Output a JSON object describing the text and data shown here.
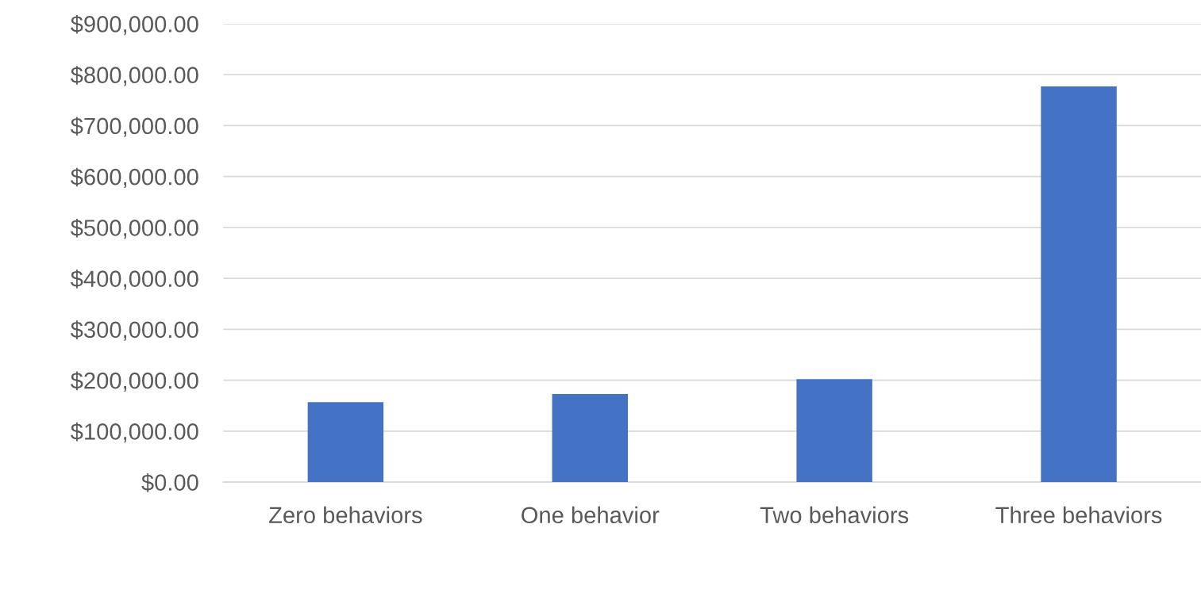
{
  "chart_data": {
    "type": "bar",
    "categories": [
      "Zero behaviors",
      "One behavior",
      "Two behaviors",
      "Three behaviors"
    ],
    "values": [
      157000,
      173000,
      202000,
      777000
    ],
    "color": "#4472c4",
    "ylim": [
      0,
      900000
    ],
    "yticks": [
      {
        "value": 0,
        "label": "$0.00"
      },
      {
        "value": 100000,
        "label": "$100,000.00"
      },
      {
        "value": 200000,
        "label": "$200,000.00"
      },
      {
        "value": 300000,
        "label": "$300,000.00"
      },
      {
        "value": 400000,
        "label": "$400,000.00"
      },
      {
        "value": 500000,
        "label": "$500,000.00"
      },
      {
        "value": 600000,
        "label": "$600,000.00"
      },
      {
        "value": 700000,
        "label": "$700,000.00"
      },
      {
        "value": 800000,
        "label": "$800,000.00"
      },
      {
        "value": 900000,
        "label": "$900,000.00"
      }
    ],
    "grid": "y"
  }
}
